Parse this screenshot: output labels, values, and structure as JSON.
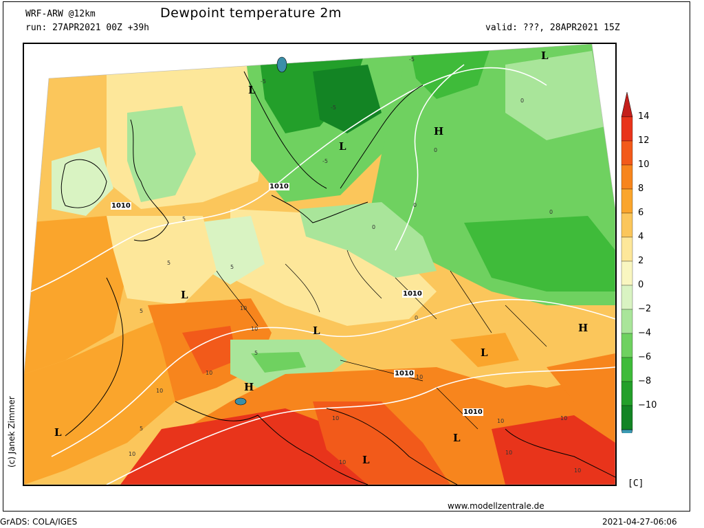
{
  "header": {
    "model": "WRF-ARW @12km",
    "title": "Dewpoint temperature 2m",
    "run": "run: 27APR2021 00Z +39h",
    "valid": "valid: ???, 28APR2021 15Z"
  },
  "footer": {
    "credit": "(c) Janek Zimmer",
    "url": "www.modellzentrale.de",
    "grads": "GrADS: COLA/IGES",
    "timestamp": "2021-04-27-06:06"
  },
  "colorbar": {
    "unit": "[C]",
    "ticks": [
      "14",
      "12",
      "10",
      "8",
      "6",
      "4",
      "2",
      "0",
      "−2",
      "−4",
      "−6",
      "−8",
      "−10"
    ],
    "colors": [
      "#e8341b",
      "#f25a1a",
      "#f7851d",
      "#faa52c",
      "#fbc65b",
      "#fde79a",
      "#f9f6c0",
      "#d9f3c2",
      "#a9e59a",
      "#6fd160",
      "#3fbb3a",
      "#239f2a",
      "#138424"
    ],
    "top_arrow_color": "#c41f1b",
    "bottom_arrow_color": "#3b9ab2"
  },
  "pressure_systems": [
    {
      "type": "L",
      "label": "L"
    },
    {
      "type": "L",
      "label": "L"
    },
    {
      "type": "H",
      "label": "H"
    },
    {
      "type": "L",
      "label": "L"
    },
    {
      "type": "L",
      "label": "L"
    },
    {
      "type": "L",
      "label": "L"
    },
    {
      "type": "H",
      "label": "H"
    },
    {
      "type": "L",
      "label": "L"
    },
    {
      "type": "L",
      "label": "L"
    },
    {
      "type": "L",
      "label": "L"
    },
    {
      "type": "H",
      "label": "H"
    },
    {
      "type": "L",
      "label": "L"
    }
  ],
  "isobar_labels": [
    "1010",
    "1010",
    "1010",
    "1010",
    "1010"
  ],
  "contour_labels": [
    "5",
    "5",
    "5",
    "5",
    "5",
    "5",
    "10",
    "10",
    "10",
    "10",
    "10",
    "10",
    "10",
    "10",
    "10",
    "10",
    "10",
    "10",
    "-5",
    "-5",
    "-5",
    "-5",
    "0",
    "0",
    "0",
    "0",
    "0",
    "0"
  ]
}
